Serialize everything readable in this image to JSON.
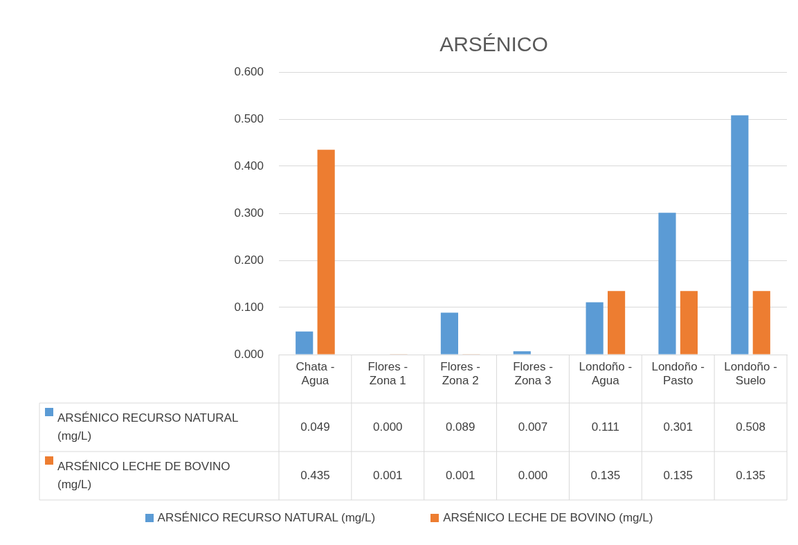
{
  "chart_data": {
    "type": "bar",
    "title": "ARSÉNICO",
    "categories": [
      "Chata - Agua",
      "Flores - Zona 1",
      "Flores - Zona 2",
      "Flores - Zona 3",
      "Londoño - Agua",
      "Londoño - Pasto",
      "Londoño - Suelo"
    ],
    "series": [
      {
        "name": "ARSÉNICO RECURSO NATURAL (mg/L)",
        "color": "#5b9bd5",
        "values": [
          0.049,
          0.0,
          0.089,
          0.007,
          0.111,
          0.301,
          0.508
        ],
        "value_labels": [
          "0.049",
          "0.000",
          "0.089",
          "0.007",
          "0.111",
          "0.301",
          "0.508"
        ]
      },
      {
        "name": "ARSÉNICO LECHE DE BOVINO (mg/L)",
        "color": "#ed7d31",
        "values": [
          0.435,
          0.001,
          0.001,
          0.0,
          0.135,
          0.135,
          0.135
        ],
        "value_labels": [
          "0.435",
          "0.001",
          "0.001",
          "0.000",
          "0.135",
          "0.135",
          "0.135"
        ]
      }
    ],
    "ylim": [
      0,
      0.6
    ],
    "yticks": [
      {
        "value": 0,
        "label": "0.000"
      },
      {
        "value": 0.1,
        "label": "0.100"
      },
      {
        "value": 0.2,
        "label": "0.200"
      },
      {
        "value": 0.3,
        "label": "0.300"
      },
      {
        "value": 0.4,
        "label": "0.400"
      },
      {
        "value": 0.5,
        "label": "0.500"
      },
      {
        "value": 0.6,
        "label": "0.600"
      }
    ],
    "grid": "y",
    "legend": "bottom"
  }
}
